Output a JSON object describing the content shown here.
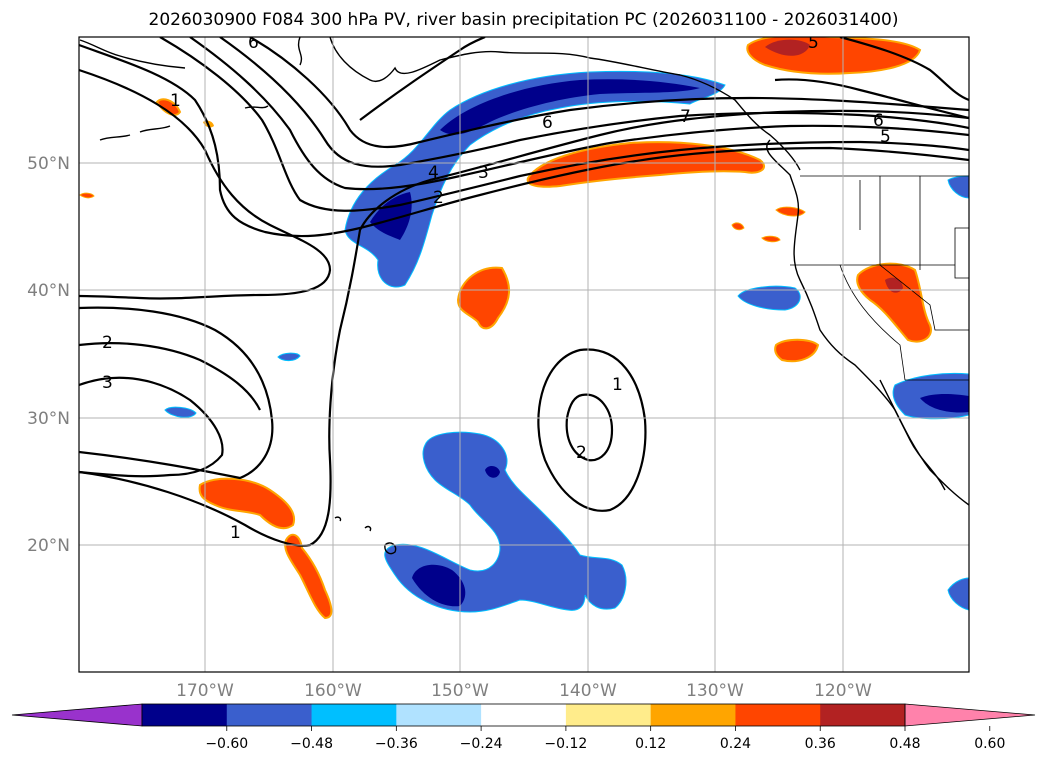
{
  "title": "2026030900 F084 300 hPa PV, river basin precipitation PC (2026031100 - 2026031400)",
  "map": {
    "lat_labels": [
      "50°N",
      "40°N",
      "30°N",
      "20°N"
    ],
    "lon_labels": [
      "170°W",
      "160°W",
      "150°W",
      "140°W",
      "130°W",
      "120°W"
    ],
    "contour_labels": [
      "6",
      "4",
      "3",
      "2",
      "1",
      "2",
      "3",
      "6",
      "5",
      "5",
      "6",
      "1",
      "2",
      "1",
      "7"
    ],
    "gridlines": true
  },
  "colorbar": {
    "ticks": [
      "−0.60",
      "−0.48",
      "−0.36",
      "−0.24",
      "−0.12",
      "0.12",
      "0.24",
      "0.36",
      "0.48",
      "0.60"
    ],
    "colors": [
      "#9932cc",
      "#00008b",
      "#3a5fcd",
      "#00bfff",
      "#b0e2ff",
      "#ffffff",
      "#ffec8b",
      "#ffa500",
      "#ff4500",
      "#b22222",
      "#ff82ab"
    ],
    "extend": "both"
  }
}
